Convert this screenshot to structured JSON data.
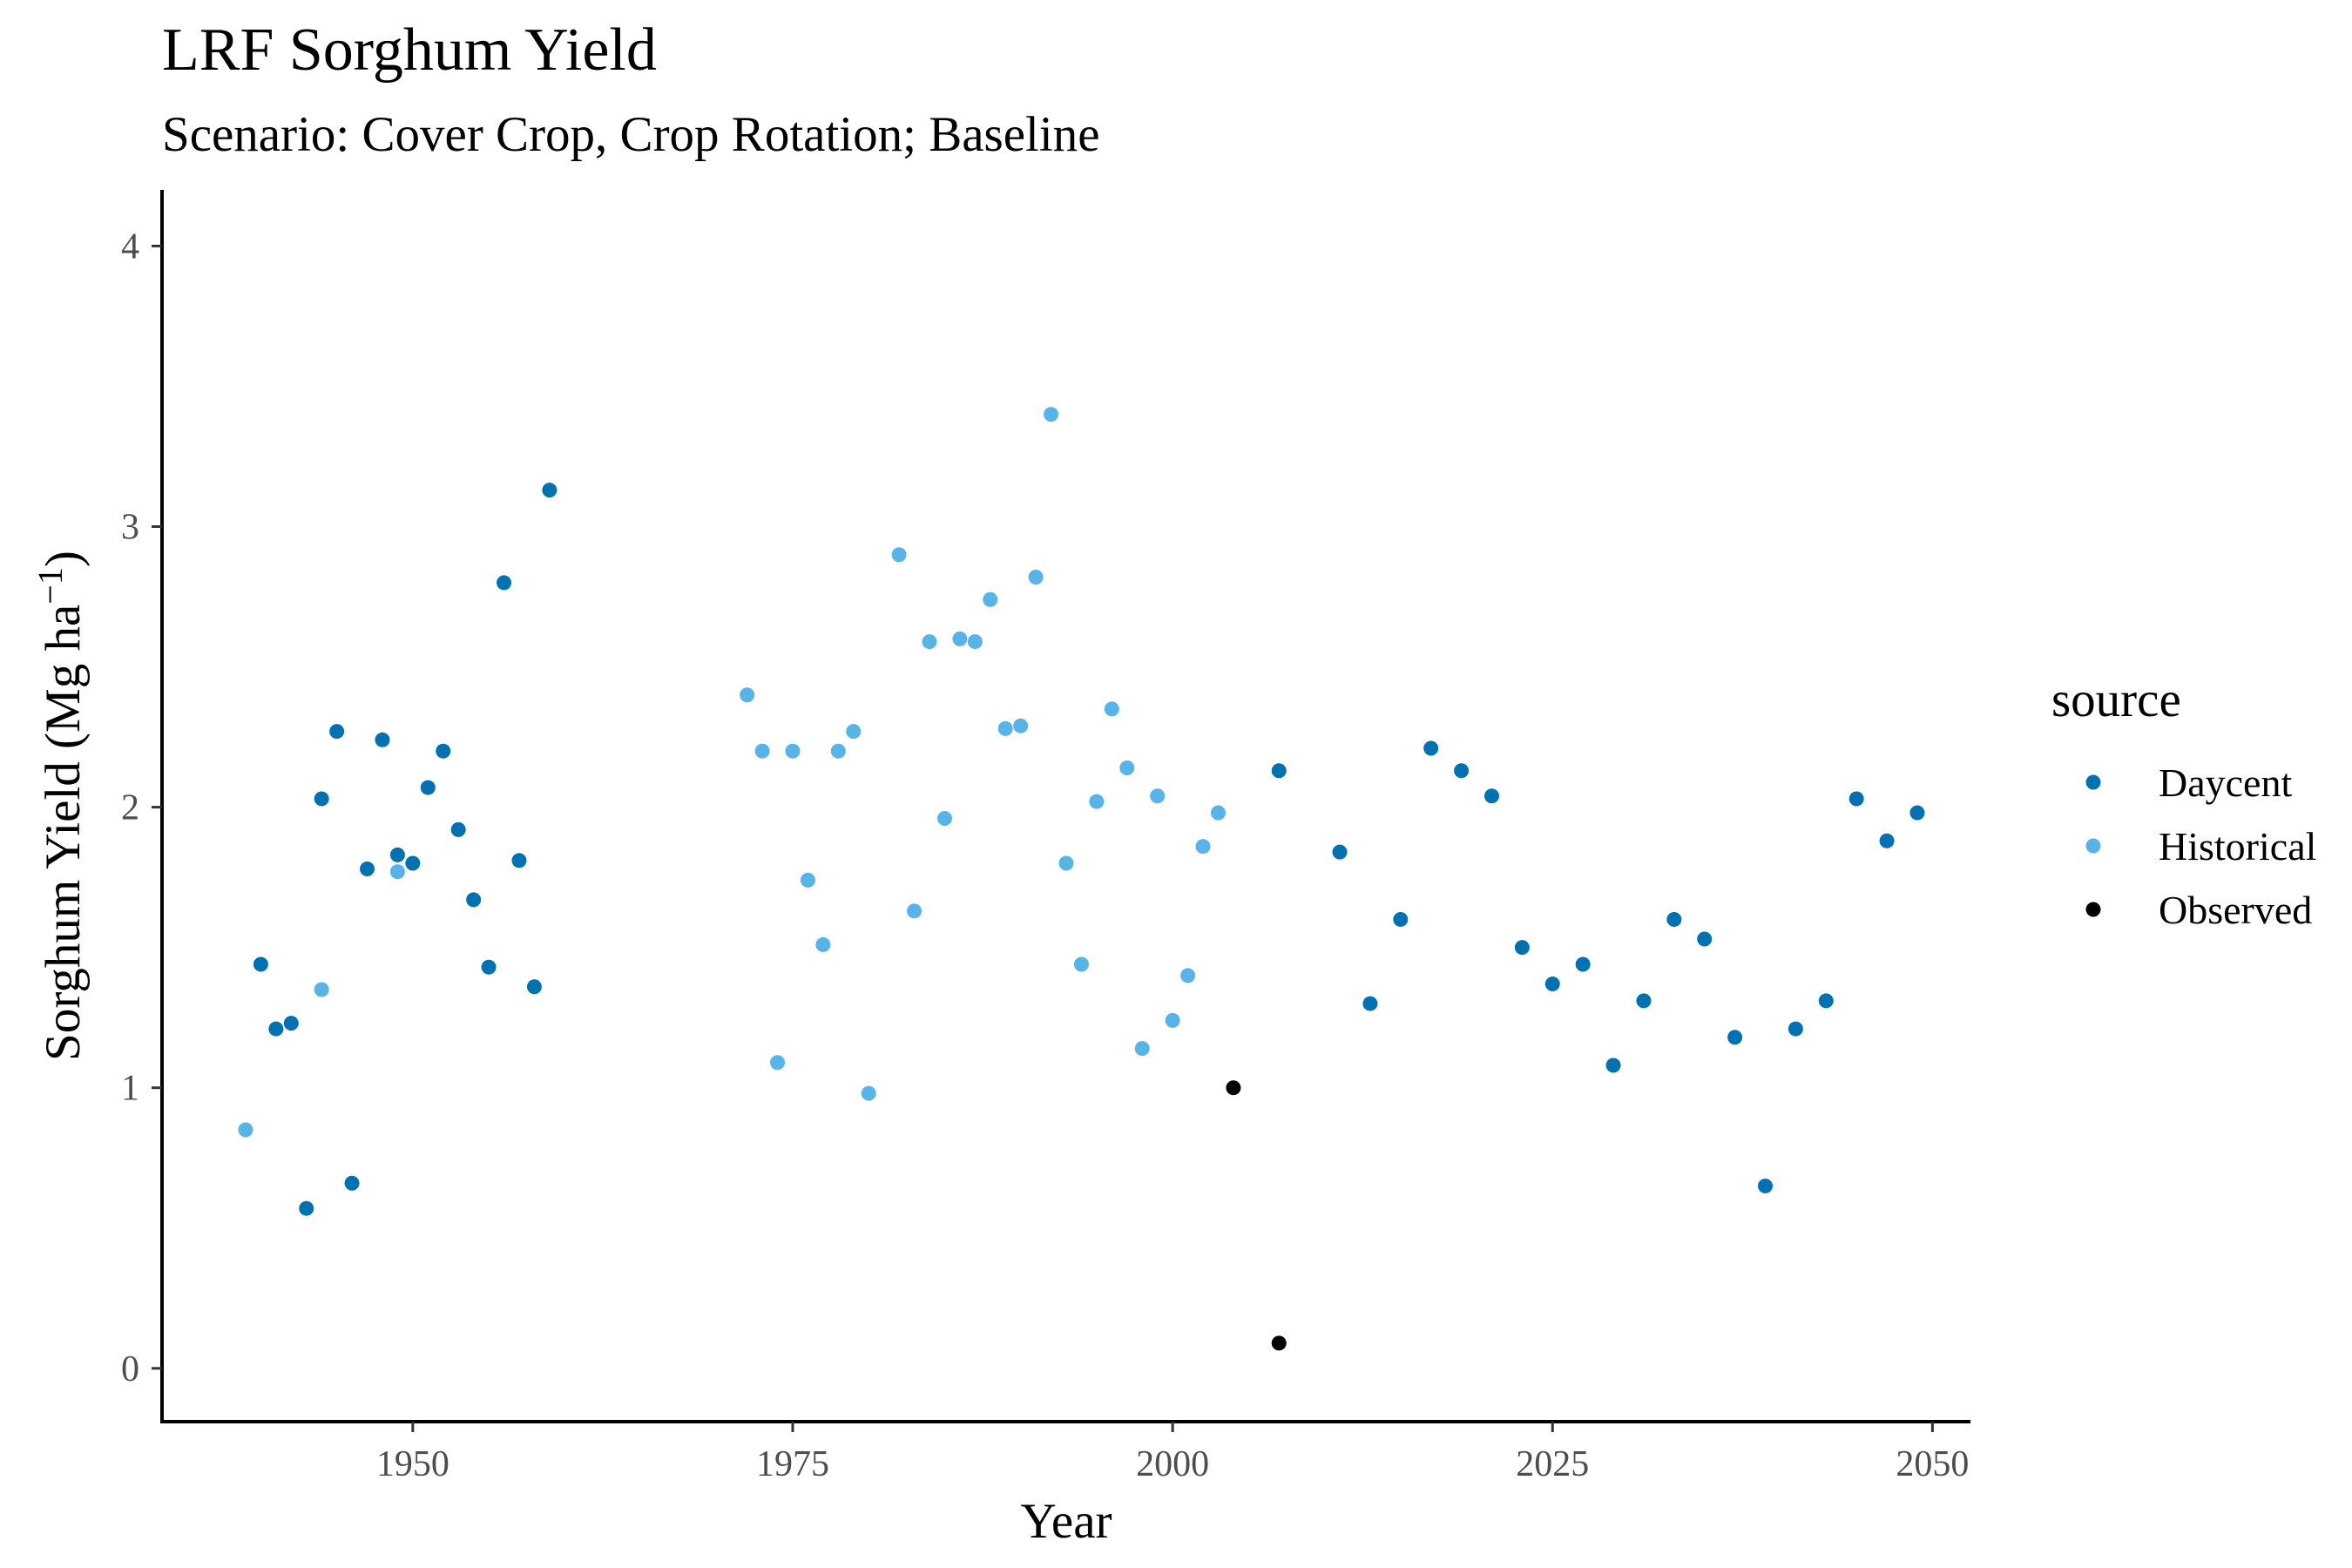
{
  "chart_data": {
    "type": "scatter",
    "title": "LRF Sorghum Yield",
    "subtitle": "Scenario: Cover Crop, Crop Rotation; Baseline",
    "xlabel": "Year",
    "ylabel_main": "Sorghum Yield (Mg ha",
    "ylabel_sup": "−1",
    "ylabel_close": ")",
    "xlim": [
      1933.5,
      2052.5
    ],
    "ylim": [
      -0.19,
      4.2
    ],
    "x_ticks": [
      1950,
      1975,
      2000,
      2025,
      2050
    ],
    "x_tick_labels": [
      "1950",
      "1975",
      "2000",
      "2025",
      "2050"
    ],
    "y_ticks": [
      0,
      1,
      2,
      3,
      4
    ],
    "y_tick_labels": [
      "0",
      "1",
      "2",
      "3",
      "4"
    ],
    "grid": false,
    "legend_title": "source",
    "legend_position": "right",
    "series": [
      {
        "name": "Daycent",
        "color": "#0072B2",
        "points": [
          [
            1940,
            1.44
          ],
          [
            1941,
            1.21
          ],
          [
            1942,
            1.23
          ],
          [
            1943,
            0.57
          ],
          [
            1944,
            2.03
          ],
          [
            1945,
            2.27
          ],
          [
            1946,
            0.66
          ],
          [
            1947,
            1.78
          ],
          [
            1948,
            2.24
          ],
          [
            1949,
            1.83
          ],
          [
            1950,
            1.8
          ],
          [
            1951,
            2.07
          ],
          [
            1952,
            2.2
          ],
          [
            1953,
            1.92
          ],
          [
            1954,
            1.67
          ],
          [
            1955,
            1.43
          ],
          [
            1956,
            2.8
          ],
          [
            1957,
            1.81
          ],
          [
            1958,
            1.36
          ],
          [
            1959,
            3.13
          ],
          [
            2007,
            2.13
          ],
          [
            2011,
            1.84
          ],
          [
            2013,
            1.3
          ],
          [
            2015,
            1.6
          ],
          [
            2017,
            2.21
          ],
          [
            2019,
            2.13
          ],
          [
            2021,
            2.04
          ],
          [
            2023,
            1.5
          ],
          [
            2025,
            1.37
          ],
          [
            2027,
            1.44
          ],
          [
            2029,
            1.08
          ],
          [
            2031,
            1.31
          ],
          [
            2033,
            1.6
          ],
          [
            2035,
            1.53
          ],
          [
            2037,
            1.18
          ],
          [
            2039,
            0.65
          ],
          [
            2041,
            1.21
          ],
          [
            2043,
            1.31
          ],
          [
            2045,
            2.03
          ],
          [
            2047,
            1.88
          ],
          [
            2049,
            1.98
          ]
        ]
      },
      {
        "name": "Historical",
        "color": "#56B4E9",
        "points": [
          [
            1939,
            0.85
          ],
          [
            1944,
            1.35
          ],
          [
            1949,
            1.77
          ],
          [
            1972,
            2.4
          ],
          [
            1973,
            2.2
          ],
          [
            1974,
            1.09
          ],
          [
            1975,
            2.2
          ],
          [
            1976,
            1.74
          ],
          [
            1977,
            1.51
          ],
          [
            1978,
            2.2
          ],
          [
            1979,
            2.27
          ],
          [
            1980,
            0.98
          ],
          [
            1982,
            2.9
          ],
          [
            1983,
            1.63
          ],
          [
            1984,
            2.59
          ],
          [
            1985,
            1.96
          ],
          [
            1986,
            2.6
          ],
          [
            1987,
            2.59
          ],
          [
            1988,
            2.74
          ],
          [
            1989,
            2.28
          ],
          [
            1990,
            2.29
          ],
          [
            1991,
            2.82
          ],
          [
            1992,
            3.4
          ],
          [
            1993,
            1.8
          ],
          [
            1994,
            1.44
          ],
          [
            1995,
            2.02
          ],
          [
            1996,
            2.35
          ],
          [
            1997,
            2.14
          ],
          [
            1998,
            1.14
          ],
          [
            1999,
            2.04
          ],
          [
            2000,
            1.24
          ],
          [
            2001,
            1.4
          ],
          [
            2002,
            1.86
          ],
          [
            2003,
            1.98
          ]
        ]
      },
      {
        "name": "Observed",
        "color": "#000000",
        "points": [
          [
            2004,
            1.0
          ],
          [
            2007,
            0.09
          ]
        ]
      }
    ]
  }
}
